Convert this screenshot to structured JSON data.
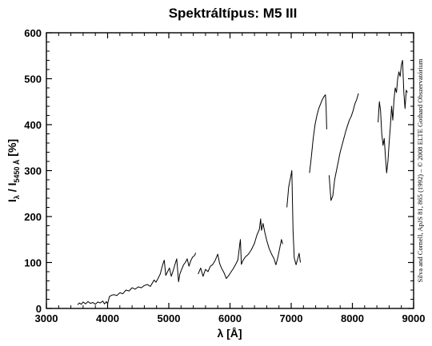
{
  "chart_data": {
    "type": "line",
    "title": "Spektráltípus: M5 III",
    "xlabel": "λ [Å]",
    "ylabel_main": "I",
    "ylabel_sub1": "λ",
    "ylabel_mid": " / I",
    "ylabel_sub2": "5450 Å",
    "ylabel_unit": " [%]",
    "xlim": [
      3000,
      9000
    ],
    "ylim": [
      0,
      600
    ],
    "xticks": [
      3000,
      4000,
      5000,
      6000,
      7000,
      8000,
      9000
    ],
    "yticks": [
      0,
      100,
      200,
      300,
      400,
      500,
      600
    ],
    "grid": false,
    "credit": "Silva and Cornell, ApJS 81, 865 (1992) – © 2008 ELTE Gothard Obszervatórium",
    "segments": [
      [
        [
          3510,
          8
        ],
        [
          3540,
          12
        ],
        [
          3570,
          9
        ],
        [
          3600,
          14
        ],
        [
          3640,
          10
        ],
        [
          3680,
          15
        ],
        [
          3720,
          11
        ],
        [
          3760,
          13
        ],
        [
          3800,
          9
        ],
        [
          3840,
          14
        ],
        [
          3880,
          12
        ],
        [
          3920,
          16
        ],
        [
          3950,
          10
        ],
        [
          3980,
          15
        ],
        [
          4000,
          10
        ],
        [
          4030,
          26
        ],
        [
          4070,
          29
        ],
        [
          4110,
          30
        ],
        [
          4150,
          28
        ],
        [
          4200,
          34
        ],
        [
          4250,
          32
        ],
        [
          4300,
          40
        ],
        [
          4350,
          38
        ],
        [
          4400,
          45
        ],
        [
          4450,
          42
        ],
        [
          4500,
          47
        ],
        [
          4550,
          45
        ],
        [
          4600,
          50
        ],
        [
          4650,
          52
        ],
        [
          4700,
          48
        ],
        [
          4730,
          55
        ],
        [
          4760,
          62
        ],
        [
          4790,
          57
        ],
        [
          4820,
          64
        ],
        [
          4860,
          75
        ],
        [
          4900,
          95
        ],
        [
          4925,
          105
        ],
        [
          4950,
          72
        ],
        [
          4980,
          80
        ],
        [
          5010,
          88
        ],
        [
          5040,
          70
        ],
        [
          5070,
          82
        ],
        [
          5100,
          95
        ],
        [
          5130,
          108
        ],
        [
          5160,
          58
        ],
        [
          5180,
          75
        ],
        [
          5210,
          85
        ],
        [
          5240,
          95
        ],
        [
          5270,
          100
        ],
        [
          5300,
          108
        ],
        [
          5330,
          92
        ],
        [
          5360,
          104
        ],
        [
          5390,
          112
        ],
        [
          5420,
          115
        ],
        [
          5440,
          121
        ]
      ],
      [
        [
          5480,
          75
        ],
        [
          5520,
          88
        ],
        [
          5560,
          70
        ],
        [
          5600,
          85
        ],
        [
          5640,
          80
        ],
        [
          5680,
          92
        ],
        [
          5720,
          96
        ],
        [
          5760,
          105
        ],
        [
          5800,
          118
        ],
        [
          5830,
          98
        ],
        [
          5860,
          88
        ],
        [
          5900,
          78
        ],
        [
          5940,
          65
        ],
        [
          5980,
          72
        ],
        [
          6020,
          80
        ],
        [
          6060,
          88
        ],
        [
          6100,
          98
        ],
        [
          6130,
          106
        ],
        [
          6160,
          140
        ],
        [
          6170,
          150
        ],
        [
          6185,
          96
        ],
        [
          6210,
          104
        ],
        [
          6250,
          112
        ],
        [
          6300,
          118
        ],
        [
          6350,
          128
        ],
        [
          6400,
          142
        ],
        [
          6440,
          160
        ],
        [
          6480,
          172
        ],
        [
          6500,
          195
        ],
        [
          6515,
          170
        ],
        [
          6540,
          185
        ],
        [
          6570,
          165
        ],
        [
          6600,
          148
        ],
        [
          6640,
          130
        ],
        [
          6680,
          118
        ],
        [
          6720,
          108
        ],
        [
          6750,
          95
        ],
        [
          6780,
          110
        ],
        [
          6810,
          130
        ],
        [
          6840,
          150
        ],
        [
          6860,
          140
        ]
      ],
      [
        [
          6930,
          220
        ],
        [
          6960,
          265
        ],
        [
          6990,
          285
        ],
        [
          7010,
          300
        ],
        [
          7030,
          170
        ],
        [
          7050,
          110
        ],
        [
          7080,
          95
        ],
        [
          7110,
          110
        ],
        [
          7130,
          120
        ],
        [
          7150,
          100
        ]
      ],
      [
        [
          7300,
          295
        ],
        [
          7330,
          330
        ],
        [
          7360,
          370
        ],
        [
          7390,
          400
        ],
        [
          7420,
          420
        ],
        [
          7450,
          435
        ],
        [
          7480,
          445
        ],
        [
          7510,
          455
        ],
        [
          7540,
          462
        ],
        [
          7560,
          465
        ],
        [
          7570,
          440
        ],
        [
          7580,
          390
        ]
      ],
      [
        [
          7620,
          290
        ],
        [
          7650,
          235
        ],
        [
          7680,
          245
        ],
        [
          7710,
          280
        ],
        [
          7740,
          300
        ],
        [
          7770,
          320
        ],
        [
          7800,
          340
        ],
        [
          7830,
          355
        ],
        [
          7860,
          370
        ],
        [
          7890,
          385
        ],
        [
          7920,
          398
        ],
        [
          7950,
          410
        ],
        [
          7980,
          418
        ],
        [
          8010,
          430
        ],
        [
          8040,
          445
        ],
        [
          8070,
          455
        ],
        [
          8100,
          468
        ]
      ],
      [
        [
          8420,
          405
        ],
        [
          8440,
          450
        ],
        [
          8460,
          430
        ],
        [
          8480,
          380
        ],
        [
          8500,
          355
        ],
        [
          8520,
          370
        ],
        [
          8540,
          330
        ],
        [
          8560,
          295
        ],
        [
          8580,
          320
        ],
        [
          8600,
          360
        ],
        [
          8620,
          395
        ],
        [
          8640,
          440
        ],
        [
          8660,
          410
        ],
        [
          8680,
          455
        ],
        [
          8700,
          480
        ],
        [
          8720,
          470
        ],
        [
          8740,
          500
        ],
        [
          8760,
          515
        ],
        [
          8780,
          505
        ],
        [
          8800,
          530
        ],
        [
          8820,
          540
        ],
        [
          8840,
          470
        ],
        [
          8860,
          435
        ],
        [
          8880,
          475
        ],
        [
          8900,
          470
        ]
      ]
    ]
  }
}
